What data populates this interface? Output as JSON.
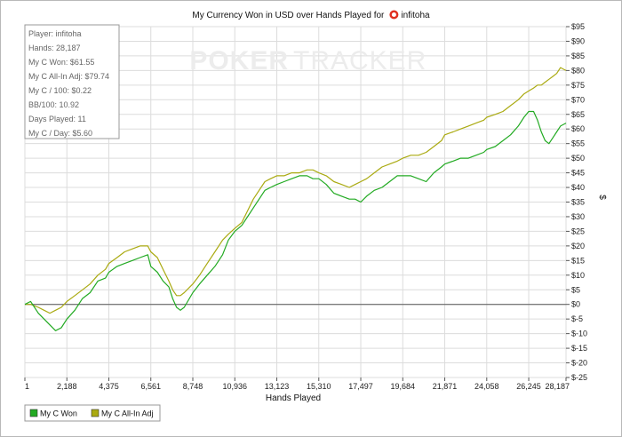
{
  "title_prefix": "My Currency Won in USD over Hands Played for",
  "player_name": "infitoha",
  "watermark_left": "POKER",
  "watermark_right": "TRACKER",
  "stats": [
    "Player: infitoha",
    "Hands: 28,187",
    "My C Won: $61.55",
    "My C All-In Adj: $79.74",
    "My C / 100: $0.22",
    "BB/100: 10.92",
    "Days Played: 11",
    "My C / Day: $5.60"
  ],
  "colors": {
    "won": "#22aa22",
    "allin": "#aaaa11",
    "zero_line": "#555555",
    "grid": "#dcdcdc"
  },
  "chart_data": {
    "type": "line",
    "title": "My Currency Won in USD over Hands Played for infitoha",
    "xlabel": "Hands Played",
    "ylabel": "$",
    "xlim": [
      1,
      28187
    ],
    "ylim": [
      -25,
      95
    ],
    "x_ticks": [
      "1",
      "2,188",
      "4,375",
      "6,561",
      "8,748",
      "10,936",
      "13,123",
      "15,310",
      "17,497",
      "19,684",
      "21,871",
      "24,058",
      "26,245",
      "28,187"
    ],
    "y_ticks": [
      "$95",
      "$90",
      "$85",
      "$80",
      "$75",
      "$70",
      "$65",
      "$60",
      "$55",
      "$50",
      "$45",
      "$40",
      "$35",
      "$30",
      "$25",
      "$20",
      "$15",
      "$10",
      "$5",
      "$0",
      "$-5",
      "$-10",
      "$-15",
      "$-20",
      "$-25"
    ],
    "grid": true,
    "legend_position": "bottom-left",
    "series": [
      {
        "name": "My C Won",
        "x": [
          1,
          300,
          700,
          1000,
          1300,
          1600,
          1900,
          2188,
          2600,
          3000,
          3400,
          3800,
          4200,
          4375,
          4800,
          5200,
          5600,
          6000,
          6400,
          6561,
          6900,
          7200,
          7500,
          7700,
          7900,
          8100,
          8300,
          8748,
          9100,
          9500,
          9900,
          10300,
          10600,
          10936,
          11300,
          11600,
          11900,
          12200,
          12500,
          12800,
          13123,
          13500,
          13900,
          14300,
          14700,
          15000,
          15310,
          15700,
          16100,
          16500,
          16900,
          17200,
          17497,
          17800,
          18200,
          18600,
          19000,
          19400,
          19684,
          20100,
          20500,
          20900,
          21300,
          21700,
          21871,
          22300,
          22700,
          23100,
          23500,
          23900,
          24058,
          24500,
          24900,
          25300,
          25700,
          26000,
          26245,
          26500,
          26700,
          26900,
          27100,
          27300,
          27500,
          27700,
          27900,
          28187
        ],
        "y": [
          0,
          1,
          -3,
          -5,
          -7,
          -9,
          -8,
          -5,
          -2,
          2,
          4,
          8,
          9,
          11,
          13,
          14,
          15,
          16,
          17,
          13,
          11,
          8,
          6,
          2,
          -1,
          -2,
          -1,
          4,
          7,
          10,
          13,
          17,
          22,
          25,
          27,
          30,
          33,
          36,
          39,
          40,
          41,
          42,
          43,
          44,
          44,
          43,
          43,
          41,
          38,
          37,
          36,
          36,
          35,
          37,
          39,
          40,
          42,
          44,
          44,
          44,
          43,
          42,
          45,
          47,
          48,
          49,
          50,
          50,
          51,
          52,
          53,
          54,
          56,
          58,
          61,
          64,
          66,
          66,
          63,
          59,
          56,
          55,
          57,
          59,
          61,
          62
        ]
      },
      {
        "name": "My C All-In Adj",
        "x": [
          1,
          300,
          700,
          1000,
          1300,
          1600,
          1900,
          2188,
          2600,
          3000,
          3400,
          3800,
          4200,
          4375,
          4800,
          5200,
          5600,
          6000,
          6400,
          6561,
          6900,
          7200,
          7500,
          7700,
          7900,
          8100,
          8300,
          8748,
          9100,
          9500,
          9900,
          10300,
          10600,
          10936,
          11300,
          11600,
          11900,
          12200,
          12500,
          12800,
          13123,
          13500,
          13900,
          14300,
          14700,
          15000,
          15310,
          15700,
          16100,
          16500,
          16900,
          17200,
          17497,
          17800,
          18200,
          18600,
          19000,
          19400,
          19684,
          20100,
          20500,
          20900,
          21300,
          21700,
          21871,
          22300,
          22700,
          23100,
          23500,
          23900,
          24058,
          24500,
          24900,
          25300,
          25700,
          26000,
          26245,
          26500,
          26700,
          26900,
          27100,
          27300,
          27500,
          27700,
          27900,
          28187
        ],
        "y": [
          0,
          0,
          -1,
          -2,
          -3,
          -2,
          -1,
          1,
          3,
          5,
          7,
          10,
          12,
          14,
          16,
          18,
          19,
          20,
          20,
          18,
          16,
          12,
          8,
          5,
          3,
          3,
          4,
          7,
          10,
          14,
          18,
          22,
          24,
          26,
          28,
          32,
          36,
          39,
          42,
          43,
          44,
          44,
          45,
          45,
          46,
          46,
          45,
          44,
          42,
          41,
          40,
          41,
          42,
          43,
          45,
          47,
          48,
          49,
          50,
          51,
          51,
          52,
          54,
          56,
          58,
          59,
          60,
          61,
          62,
          63,
          64,
          65,
          66,
          68,
          70,
          72,
          73,
          74,
          75,
          75,
          76,
          77,
          78,
          79,
          81,
          80
        ]
      }
    ]
  }
}
